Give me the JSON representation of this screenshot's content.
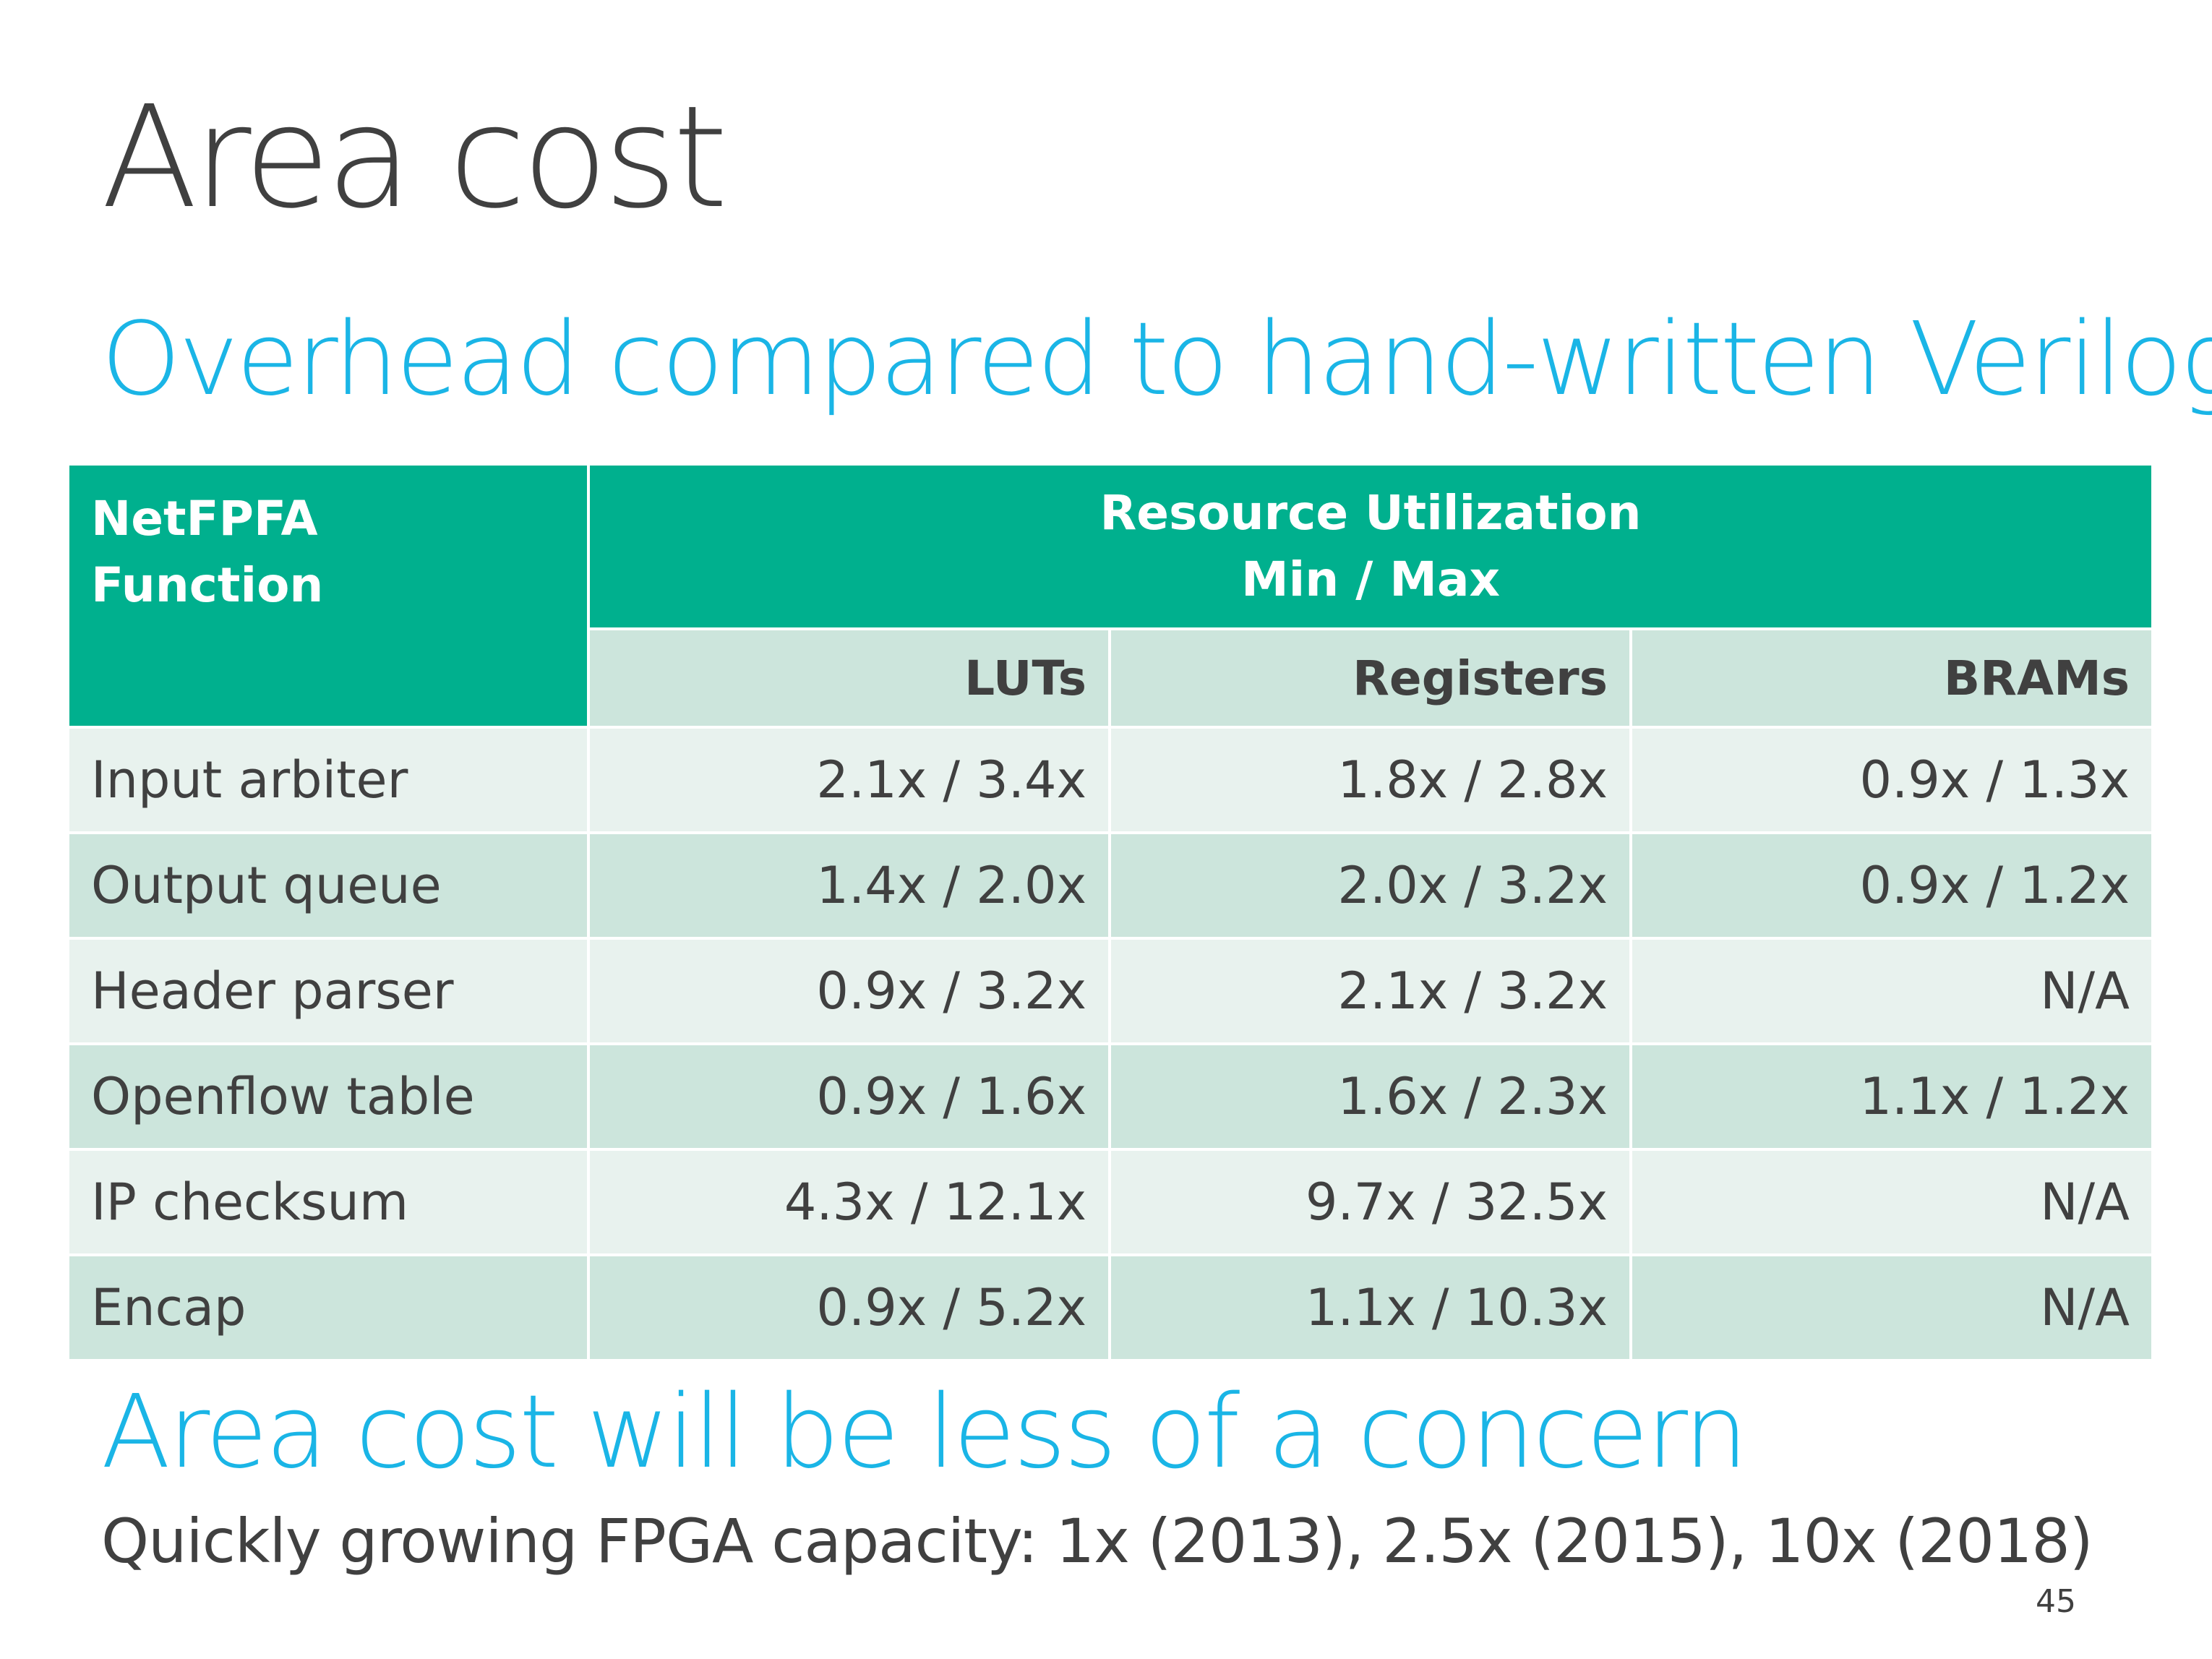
{
  "slide": {
    "title": "Area cost",
    "subtitle": "Overhead compared to hand-written Verilog",
    "page_number": "45"
  },
  "table": {
    "corner_header_line1": "NetFPFA",
    "corner_header_line2": "Function",
    "group_header_line1": "Resource Utilization",
    "group_header_line2": "Min / Max",
    "columns": [
      "LUTs",
      "Registers",
      "BRAMs"
    ],
    "rows": [
      {
        "function": "Input arbiter",
        "luts": "2.1x / 3.4x",
        "registers": "1.8x / 2.8x",
        "brams": "0.9x / 1.3x"
      },
      {
        "function": "Output queue",
        "luts": "1.4x / 2.0x",
        "registers": "2.0x / 3.2x",
        "brams": "0.9x / 1.2x"
      },
      {
        "function": "Header parser",
        "luts": "0.9x / 3.2x",
        "registers": "2.1x / 3.2x",
        "brams": "N/A"
      },
      {
        "function": "Openflow table",
        "luts": "0.9x / 1.6x",
        "registers": "1.6x / 2.3x",
        "brams": "1.1x / 1.2x"
      },
      {
        "function": "IP checksum",
        "luts": "4.3x / 12.1x",
        "registers": "9.7x / 32.5x",
        "brams": "N/A"
      },
      {
        "function": "Encap",
        "luts": "0.9x / 5.2x",
        "registers": "1.1x / 10.3x",
        "brams": "N/A"
      }
    ]
  },
  "note": {
    "heading": "Area cost will be less of a concern",
    "body": "Quickly growing FPGA capacity: 1x (2013), 2.5x (2015), 10x (2018)"
  },
  "colors": {
    "title": "#404040",
    "accent_blue": "#1ab5e6",
    "header_green": "#00b08e",
    "subheader_bg": "#cce5dc",
    "row_light": "#e8f2ee",
    "row_dark": "#cce5dc"
  }
}
